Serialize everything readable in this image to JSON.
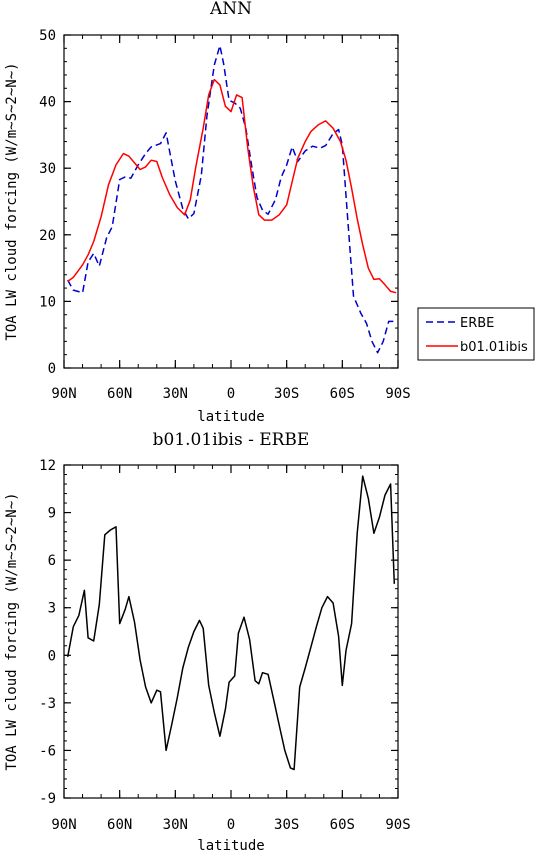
{
  "chart_data": [
    {
      "type": "line",
      "title": "ANN",
      "xlabel": "latitude",
      "ylabel": "TOA LW cloud forcing (W/m~S~2~N~)",
      "xlim": [
        90,
        -90
      ],
      "ylim": [
        0,
        50
      ],
      "x_ticks": [
        {
          "value": 90,
          "label": "90N"
        },
        {
          "value": 60,
          "label": "60N"
        },
        {
          "value": 30,
          "label": "30N"
        },
        {
          "value": 0,
          "label": "0"
        },
        {
          "value": -30,
          "label": "30S"
        },
        {
          "value": -60,
          "label": "60S"
        },
        {
          "value": -90,
          "label": "90S"
        }
      ],
      "y_ticks": [
        {
          "value": 0,
          "label": "0"
        },
        {
          "value": 10,
          "label": "10"
        },
        {
          "value": 20,
          "label": "20"
        },
        {
          "value": 30,
          "label": "30"
        },
        {
          "value": 40,
          "label": "40"
        },
        {
          "value": 50,
          "label": "50"
        }
      ],
      "legend": "right",
      "series": [
        {
          "name": "ERBE",
          "color": "#0000cc",
          "dash": "dashed",
          "x": [
            88,
            85,
            80,
            77,
            74,
            71,
            67,
            64,
            60,
            57,
            54,
            50,
            46,
            43,
            40,
            38,
            35,
            30,
            26,
            23,
            20,
            16,
            13,
            9,
            6,
            4,
            1,
            -2,
            -5,
            -8,
            -11,
            -14,
            -17,
            -20,
            -24,
            -27,
            -30,
            -33,
            -36,
            -40,
            -44,
            -48,
            -51,
            -55,
            -58,
            -60,
            -63,
            -66,
            -70,
            -73,
            -76,
            -79,
            -82,
            -85,
            -88
          ],
          "y": [
            13.2,
            11.7,
            11.3,
            15.9,
            17.2,
            15.3,
            19.6,
            21.2,
            28.3,
            28.7,
            28.5,
            30.5,
            32.2,
            33.2,
            33.5,
            33.7,
            35.3,
            28.1,
            23.9,
            22.4,
            23.2,
            28.9,
            37.8,
            45.5,
            48.4,
            45.7,
            40.2,
            39.8,
            39.0,
            36.0,
            30.6,
            25.6,
            23.7,
            23.1,
            25.3,
            28.6,
            30.5,
            33.2,
            31.0,
            32.6,
            33.3,
            33.0,
            33.4,
            35.2,
            35.8,
            33.5,
            22.0,
            10.8,
            8.2,
            6.7,
            4.0,
            2.3,
            4.0,
            7.0,
            7.0
          ]
        },
        {
          "name": "b01.01ibis",
          "color": "#ff0000",
          "dash": "solid",
          "x": [
            88,
            85,
            80,
            77,
            74,
            70,
            66,
            62,
            58,
            55,
            52,
            49,
            46,
            43,
            40,
            37,
            33,
            29,
            25,
            22,
            19,
            15,
            12,
            9,
            6,
            3,
            0,
            -3,
            -6,
            -9,
            -12,
            -15,
            -18,
            -22,
            -26,
            -30,
            -33,
            -36,
            -40,
            -43,
            -47,
            -51,
            -55,
            -59,
            -62,
            -65,
            -68,
            -71,
            -74,
            -77,
            -80,
            -83,
            -86,
            -89
          ],
          "y": [
            13.0,
            13.6,
            15.5,
            17.0,
            19.0,
            22.7,
            27.5,
            30.5,
            32.2,
            31.8,
            30.8,
            29.8,
            30.2,
            31.2,
            31.0,
            28.6,
            26.0,
            24.1,
            23.0,
            25.2,
            30.1,
            36.0,
            41.0,
            43.3,
            42.5,
            39.3,
            38.5,
            41.0,
            40.6,
            33.1,
            27.2,
            23.0,
            22.2,
            22.2,
            23.0,
            24.5,
            28.0,
            31.5,
            34.0,
            35.5,
            36.5,
            37.1,
            36.0,
            34.0,
            31.2,
            27.0,
            22.4,
            18.5,
            15.0,
            13.3,
            13.4,
            12.5,
            11.5,
            11.3
          ]
        }
      ]
    },
    {
      "type": "line",
      "title": "b01.01ibis - ERBE",
      "xlabel": "latitude",
      "ylabel": "TOA LW cloud forcing (W/m~S~2~N~)",
      "xlim": [
        90,
        -90
      ],
      "ylim": [
        -9,
        12
      ],
      "x_ticks": [
        {
          "value": 90,
          "label": "90N"
        },
        {
          "value": 60,
          "label": "60N"
        },
        {
          "value": 30,
          "label": "30N"
        },
        {
          "value": 0,
          "label": "0"
        },
        {
          "value": -30,
          "label": "30S"
        },
        {
          "value": -60,
          "label": "60S"
        },
        {
          "value": -90,
          "label": "90S"
        }
      ],
      "y_ticks": [
        {
          "value": -9,
          "label": "-9"
        },
        {
          "value": -6,
          "label": "-6"
        },
        {
          "value": -3,
          "label": "-3"
        },
        {
          "value": 0,
          "label": "0"
        },
        {
          "value": 3,
          "label": "3"
        },
        {
          "value": 6,
          "label": "6"
        },
        {
          "value": 9,
          "label": "9"
        },
        {
          "value": 12,
          "label": "12"
        }
      ],
      "series": [
        {
          "name": "b01.01ibis - ERBE",
          "color": "#000000",
          "dash": "solid",
          "x": [
            88,
            85,
            82,
            79,
            77,
            74,
            71,
            68,
            65,
            62,
            60,
            57,
            55,
            52,
            49,
            46,
            43,
            40,
            38,
            35,
            32,
            29,
            26,
            23,
            20,
            17,
            15,
            12,
            9,
            6,
            3,
            1,
            -2,
            -4,
            -7,
            -10,
            -13,
            -15,
            -17,
            -20,
            -23,
            -26,
            -29,
            -32,
            -34,
            -37,
            -40,
            -43,
            -46,
            -49,
            -52,
            -55,
            -58,
            -60,
            -62,
            -65,
            -68,
            -71,
            -74,
            -77,
            -80,
            -83,
            -86,
            -88
          ],
          "y": [
            -0.1,
            1.8,
            2.5,
            4.1,
            1.1,
            0.9,
            3.2,
            7.6,
            7.9,
            8.1,
            2.0,
            2.9,
            3.7,
            2.1,
            -0.3,
            -2.0,
            -3.0,
            -2.2,
            -2.3,
            -6.0,
            -4.4,
            -2.7,
            -0.8,
            0.5,
            1.5,
            2.2,
            1.7,
            -1.9,
            -3.6,
            -5.1,
            -3.4,
            -1.7,
            -1.3,
            1.4,
            2.4,
            1.0,
            -1.6,
            -1.8,
            -1.1,
            -1.2,
            -2.8,
            -4.4,
            -6.0,
            -7.1,
            -7.2,
            -2.0,
            -0.8,
            0.5,
            1.8,
            3.0,
            3.7,
            3.3,
            1.2,
            -1.9,
            0.3,
            2.0,
            7.7,
            11.3,
            9.9,
            7.7,
            8.7,
            10.1,
            10.8,
            4.5
          ]
        }
      ]
    }
  ]
}
